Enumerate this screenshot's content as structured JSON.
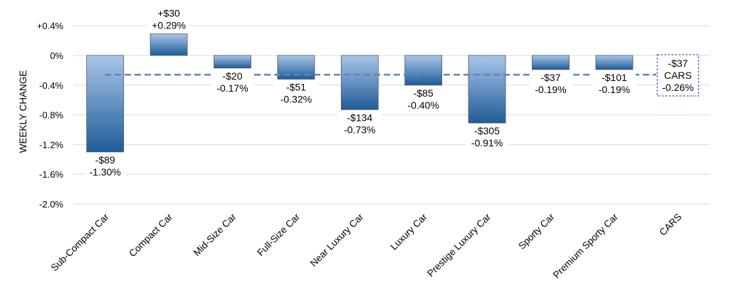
{
  "chart_data": {
    "type": "bar",
    "xlabel": "",
    "ylabel": "WEEKLY CHANGE",
    "ylim": [
      -2.0,
      0.4
    ],
    "yticks": [
      0.4,
      0,
      -0.4,
      -0.8,
      -1.2,
      -1.6,
      -2.0
    ],
    "ytick_labels": [
      "+0.4%",
      "0%",
      "-0.4%",
      "-0.8%",
      "-1.2%",
      "-1.6%",
      "-2.0%"
    ],
    "grid": true,
    "categories": [
      "Sub-Compact Car",
      "Compact Car",
      "Mid-Size Car",
      "Full-Size Car",
      "Near Luxury Car",
      "Luxury Car",
      "Prestige Luxury Car",
      "Sporty Car",
      "Premium Sporty Car",
      "CARS"
    ],
    "values": [
      -1.3,
      0.29,
      -0.17,
      -0.32,
      -0.73,
      -0.4,
      -0.91,
      -0.19,
      -0.19,
      -0.26
    ],
    "dollar_labels": [
      "-$89",
      "+$30",
      "-$20",
      "-$51",
      "-$134",
      "-$85",
      "-$305",
      "-$37",
      "-$101",
      "-$37"
    ],
    "percent_labels": [
      "-1.30%",
      "+0.29%",
      "-0.17%",
      "-0.32%",
      "-0.73%",
      "-0.40%",
      "-0.91%",
      "-0.19%",
      "-0.19%",
      "-0.26%"
    ],
    "average": {
      "value": -0.26,
      "category": "CARS",
      "label": "CARS"
    },
    "colors": {
      "bar_dark": "#1f5c99",
      "bar_light": "#a9c6e8",
      "average_line": "#5b86c0",
      "grid": "#d9d9d9"
    }
  }
}
